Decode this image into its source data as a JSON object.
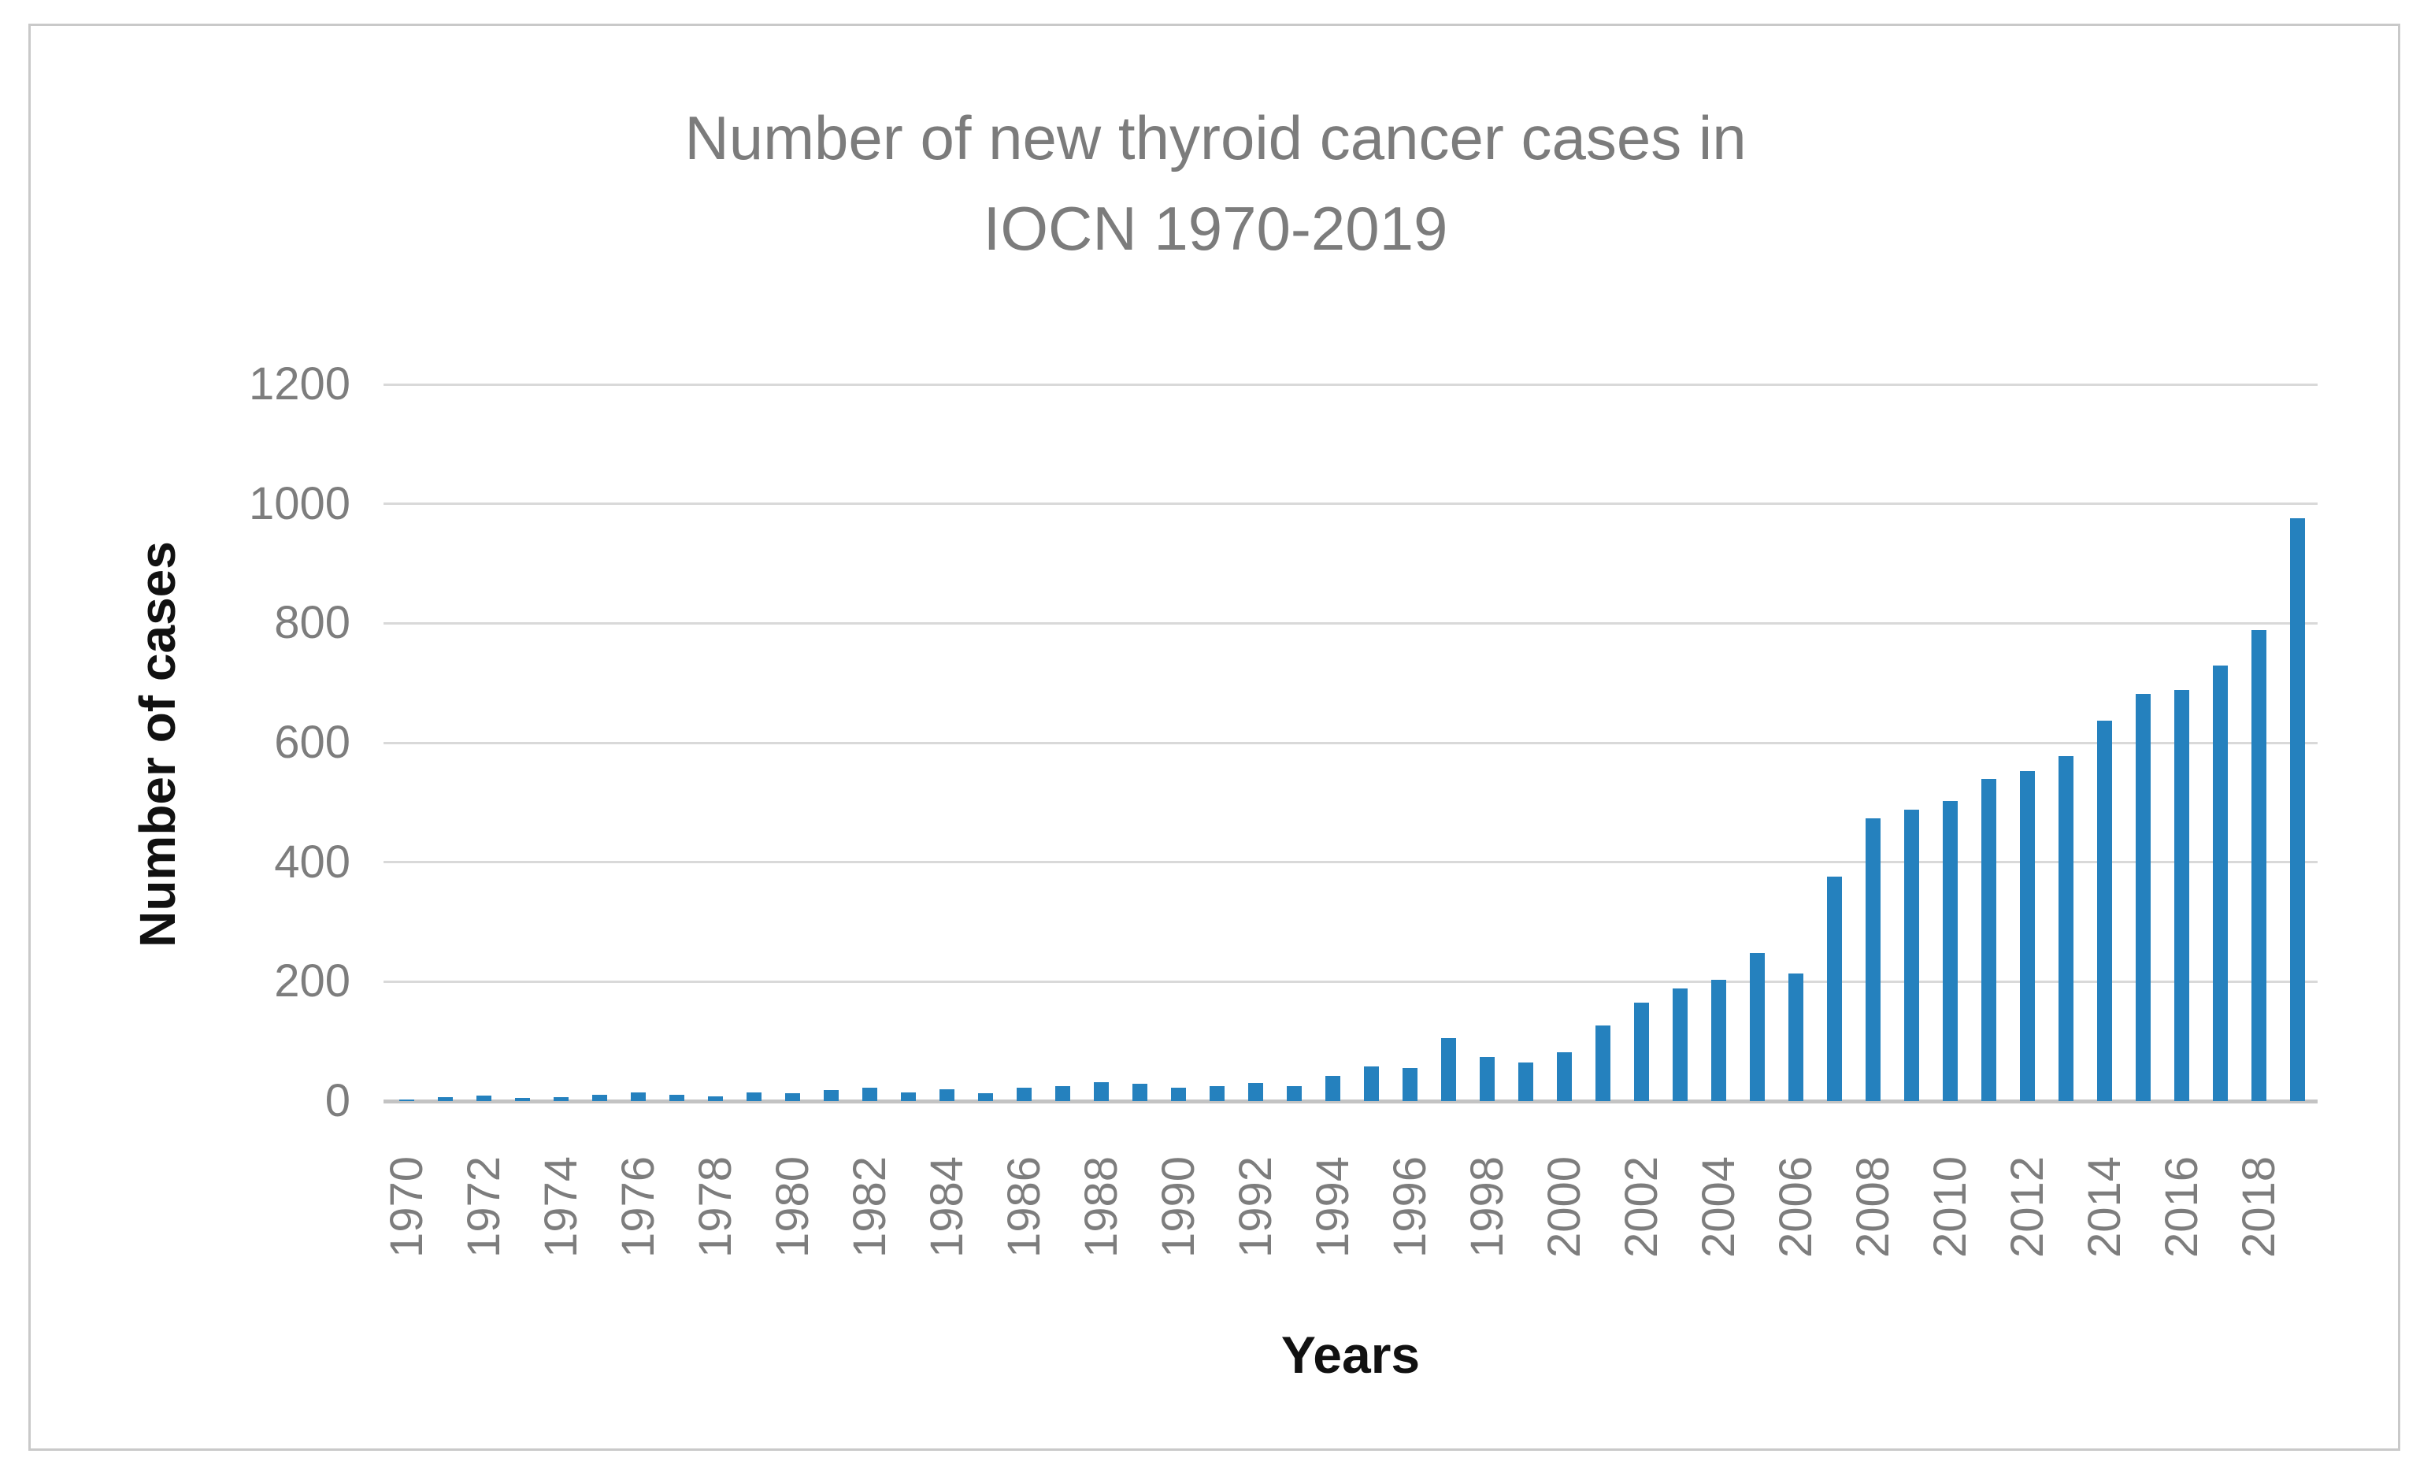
{
  "title_line1": "Number of new thyroid cancer cases in",
  "title_line2": "IOCN 1970-2019",
  "ylabel": "Number of cases",
  "xlabel": "Years",
  "colors": {
    "bar": "#2581be",
    "title_text": "#7c7c7c",
    "tick_text": "#7d7d7d",
    "gridline": "#d9d9d9",
    "baseline": "#c3c3c3",
    "border": "#c9c9c9"
  },
  "chart_data": {
    "type": "bar",
    "title": "Number of new thyroid cancer cases in IOCN 1970-2019",
    "xlabel": "Years",
    "ylabel": "Number of cases",
    "ylim": [
      0,
      1200
    ],
    "ytick_step": 200,
    "yticks": [
      0,
      200,
      400,
      600,
      800,
      1000,
      1200
    ],
    "xtick_label_every": 2,
    "grid": "horizontal",
    "legend": "none",
    "categories": [
      1970,
      1971,
      1972,
      1973,
      1974,
      1975,
      1976,
      1977,
      1978,
      1979,
      1980,
      1981,
      1982,
      1983,
      1984,
      1985,
      1986,
      1987,
      1988,
      1989,
      1990,
      1991,
      1992,
      1993,
      1994,
      1995,
      1996,
      1997,
      1998,
      1999,
      2000,
      2001,
      2002,
      2003,
      2004,
      2005,
      2006,
      2007,
      2008,
      2009,
      2010,
      2011,
      2012,
      2013,
      2014,
      2015,
      2016,
      2017,
      2018,
      2019
    ],
    "values": [
      3,
      6,
      9,
      5,
      7,
      10,
      14,
      11,
      8,
      14,
      13,
      18,
      23,
      14,
      20,
      13,
      22,
      25,
      31,
      29,
      22,
      25,
      30,
      25,
      42,
      58,
      56,
      106,
      74,
      65,
      82,
      127,
      165,
      189,
      203,
      248,
      214,
      376,
      473,
      488,
      503,
      539,
      552,
      578,
      637,
      682,
      688,
      729,
      788,
      976
    ]
  }
}
